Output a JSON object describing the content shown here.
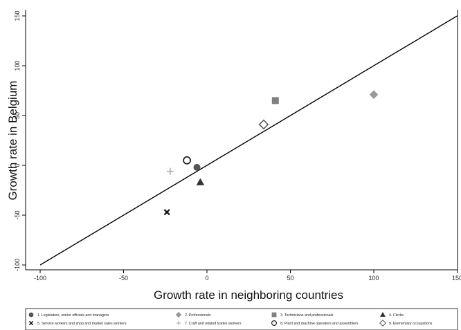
{
  "chart_data": {
    "type": "scatter",
    "xlabel": "Growth rate in neighboring countries",
    "ylabel": "Growth rate in Belgium",
    "xlim": [
      -105,
      150
    ],
    "ylim": [
      -105,
      155
    ],
    "x_ticks": [
      -100,
      -50,
      0,
      50,
      100,
      150
    ],
    "x_tick_labels": [
      "-100",
      "-50",
      "0",
      "50",
      "100",
      "150"
    ],
    "y_ticks": [
      -100,
      -50,
      0,
      50,
      100,
      150
    ],
    "y_tick_labels": [
      "-100",
      "-50",
      "0",
      "50",
      "100",
      "150"
    ],
    "grid": false,
    "legend_position": "bottom",
    "reference_line": {
      "from": [
        -100,
        -100
      ],
      "to": [
        150,
        150
      ],
      "color": "#000000"
    },
    "series": [
      {
        "name": "1. Legislators, senior officials and  managers",
        "marker": "circle",
        "color": "#555555",
        "x": -6,
        "y": -2
      },
      {
        "name": "2. Professionals",
        "marker": "diamond",
        "color": "#999999",
        "x": 100,
        "y": 71
      },
      {
        "name": "3. Technicians and  professionals",
        "marker": "square",
        "color": "#808080",
        "x": 41,
        "y": 65
      },
      {
        "name": "4. Clerks",
        "marker": "triangle",
        "color": "#333333",
        "x": -4,
        "y": -17
      },
      {
        "name": "5. Service workers and shop and market sales workers",
        "marker": "x",
        "color": "#111111",
        "x": -24,
        "y": -47
      },
      {
        "name": "7. Craft and related trades workers",
        "marker": "plus",
        "color": "#aaaaaa",
        "x": -22,
        "y": -6
      },
      {
        "name": "8. Plant and machine operators and assemblers",
        "marker": "circle-hollow",
        "color": "#222222",
        "x": -12,
        "y": 5
      },
      {
        "name": "9. Elementary occupations",
        "marker": "diamond-hollow",
        "color": "#555555",
        "x": 34,
        "y": 41
      }
    ]
  }
}
